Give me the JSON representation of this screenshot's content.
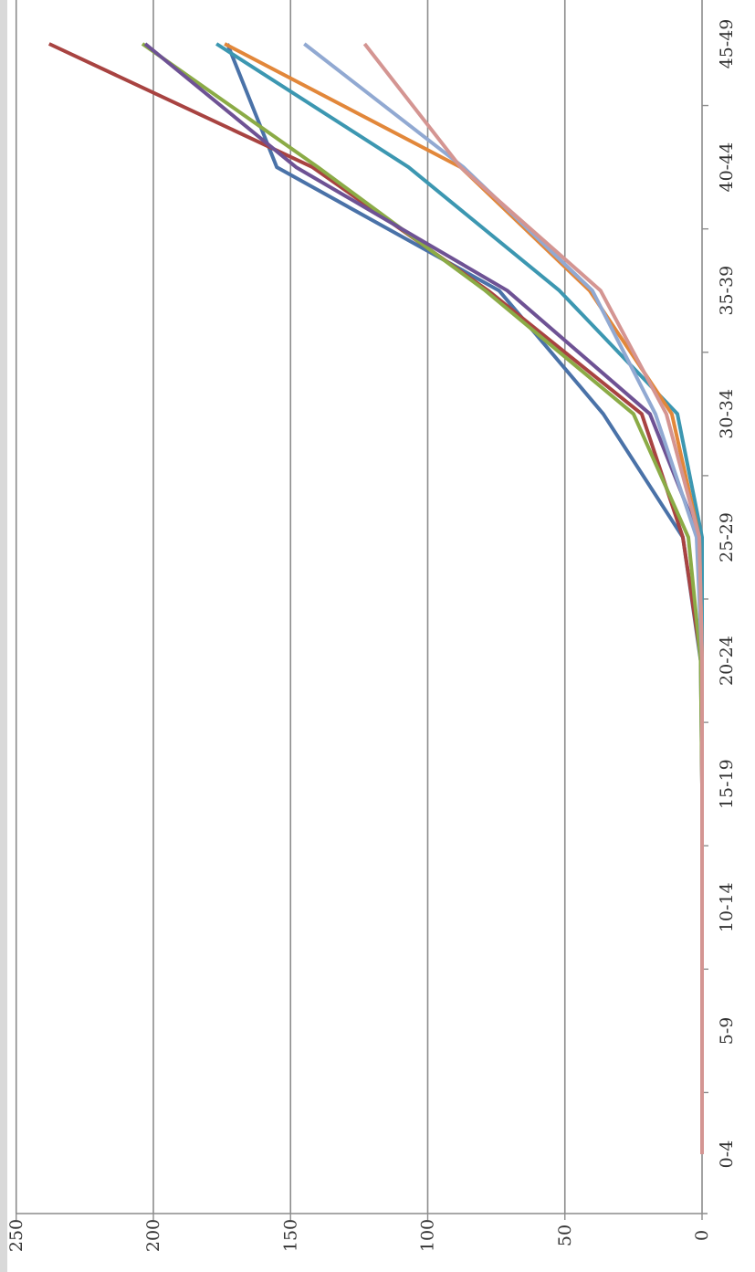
{
  "chart_data": {
    "type": "line",
    "title": "",
    "xlabel": "",
    "ylabel": "",
    "orientation": "rotated-90",
    "categories": [
      "0-4",
      "5-9",
      "10-14",
      "15-19",
      "20-24",
      "25-29",
      "30-34",
      "35-39",
      "40-44",
      "45-49"
    ],
    "ylim": [
      0,
      250
    ],
    "yticks": [
      "0",
      "50",
      "100",
      "150",
      "200",
      "250"
    ],
    "grid": true,
    "legend": "none",
    "series": [
      {
        "color": "#4a72a8",
        "values": [
          0,
          0,
          0,
          0,
          0.5,
          7,
          36,
          74,
          155,
          173
        ]
      },
      {
        "color": "#a84341",
        "values": [
          0,
          0,
          0,
          0,
          0.3,
          7,
          22,
          78,
          142,
          238
        ]
      },
      {
        "color": "#8bab46",
        "values": [
          0,
          0,
          0,
          0,
          0.5,
          5,
          25,
          79,
          140,
          204
        ]
      },
      {
        "color": "#6e5294",
        "values": [
          0,
          0,
          0,
          0,
          0,
          1,
          19,
          71,
          148,
          203
        ]
      },
      {
        "color": "#3c97b1",
        "values": [
          0,
          0,
          0,
          0,
          0,
          0,
          9,
          52,
          107,
          177
        ]
      },
      {
        "color": "#e2873a",
        "values": [
          0,
          0,
          0,
          0,
          0,
          1,
          11,
          41,
          88,
          174
        ]
      },
      {
        "color": "#91a9d2",
        "values": [
          0,
          0,
          0,
          0,
          0,
          2,
          17,
          40,
          87,
          145
        ]
      },
      {
        "color": "#d49592",
        "values": [
          0,
          0,
          0,
          0,
          0,
          1,
          13,
          37,
          88,
          123
        ]
      }
    ]
  }
}
